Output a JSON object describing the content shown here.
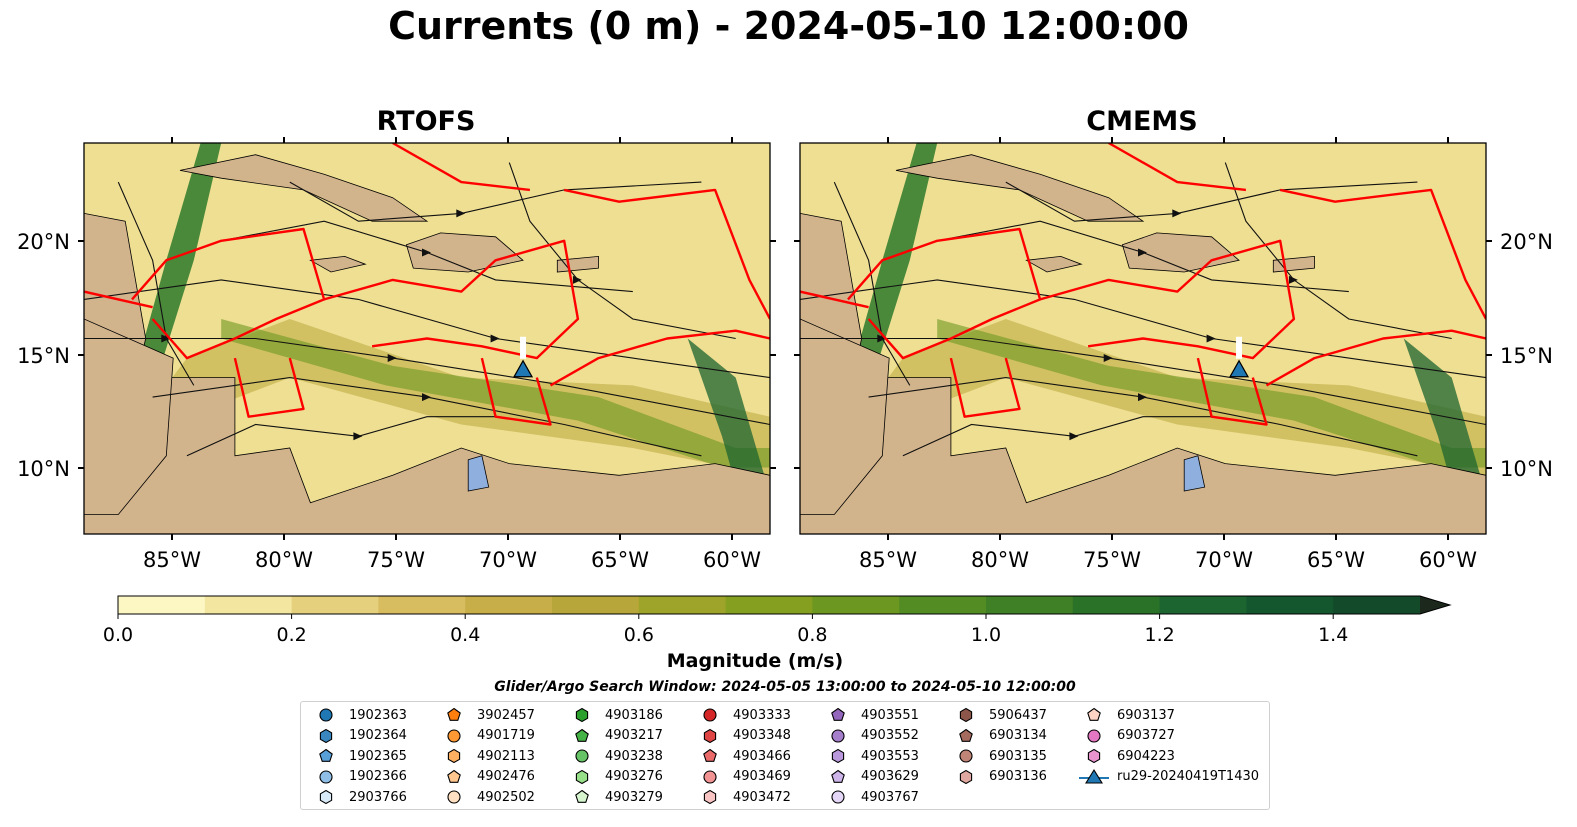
{
  "title": "Currents (0 m) - 2024-05-10 12:00:00",
  "panels": [
    {
      "title": "RTOFS"
    },
    {
      "title": "CMEMS"
    }
  ],
  "axes": {
    "lat_ticks": [
      "20°N",
      "15°N",
      "10°N"
    ],
    "lon_ticks": [
      "85°W",
      "80°W",
      "75°W",
      "70°W",
      "65°W",
      "60°W"
    ]
  },
  "colorbar": {
    "label": "Magnitude (m/s)",
    "ticks": [
      "0.0",
      "0.2",
      "0.4",
      "0.6",
      "0.8",
      "1.0",
      "1.2",
      "1.4"
    ],
    "range": [
      0.0,
      1.5
    ],
    "extend": "max",
    "colors": [
      "#fdf7c3",
      "#f3e6a0",
      "#e5d07e",
      "#d8bc60",
      "#c8ae49",
      "#b7a73a",
      "#9ea32a",
      "#85a020",
      "#6c9721",
      "#548c24",
      "#3f7f26",
      "#2b7229",
      "#1c6430",
      "#14562e",
      "#134a2a",
      "#173d26",
      "#1a3221",
      "#1c281b"
    ]
  },
  "search_window": "Glider/Argo Search Window: 2024-05-05 13:00:00 to 2024-05-10 12:00:00",
  "legend": {
    "columns": [
      [
        {
          "label": "1902363",
          "marker": "circle",
          "color": "#1f77b4"
        },
        {
          "label": "1902364",
          "marker": "hexagon",
          "color": "#3a87c0"
        },
        {
          "label": "1902365",
          "marker": "pentagon",
          "color": "#5aa0d8"
        },
        {
          "label": "1902366",
          "marker": "circle",
          "color": "#8fbfe6"
        },
        {
          "label": "2903766",
          "marker": "hexagon",
          "color": "#d8e9f7"
        }
      ],
      [
        {
          "label": "3902457",
          "marker": "pentagon",
          "color": "#ff7f0e"
        },
        {
          "label": "4901719",
          "marker": "circle",
          "color": "#ff9933"
        },
        {
          "label": "4902113",
          "marker": "hexagon",
          "color": "#ffb060"
        },
        {
          "label": "4902476",
          "marker": "pentagon",
          "color": "#ffc68f"
        },
        {
          "label": "4902502",
          "marker": "circle",
          "color": "#ffe0c2"
        }
      ],
      [
        {
          "label": "4903186",
          "marker": "hexagon",
          "color": "#2ca02c"
        },
        {
          "label": "4903217",
          "marker": "pentagon",
          "color": "#45b245"
        },
        {
          "label": "4903238",
          "marker": "circle",
          "color": "#66c466"
        },
        {
          "label": "4903276",
          "marker": "hexagon",
          "color": "#98df8a"
        },
        {
          "label": "4903279",
          "marker": "pentagon",
          "color": "#d6f5cf"
        }
      ],
      [
        {
          "label": "4903333",
          "marker": "circle",
          "color": "#d62728"
        },
        {
          "label": "4903348",
          "marker": "hexagon",
          "color": "#e04545"
        },
        {
          "label": "4903466",
          "marker": "pentagon",
          "color": "#ea6a6a"
        },
        {
          "label": "4903469",
          "marker": "circle",
          "color": "#f29494"
        },
        {
          "label": "4903472",
          "marker": "hexagon",
          "color": "#f9c4c4"
        }
      ],
      [
        {
          "label": "4903551",
          "marker": "pentagon",
          "color": "#9467bd"
        },
        {
          "label": "4903552",
          "marker": "circle",
          "color": "#a67fcc"
        },
        {
          "label": "4903553",
          "marker": "hexagon",
          "color": "#b998dc"
        },
        {
          "label": "4903629",
          "marker": "pentagon",
          "color": "#cdb5ea"
        },
        {
          "label": "4903767",
          "marker": "circle",
          "color": "#e4d6f6"
        }
      ],
      [
        {
          "label": "5906437",
          "marker": "hexagon",
          "color": "#8c564b"
        },
        {
          "label": "6903134",
          "marker": "pentagon",
          "color": "#a66b5f"
        },
        {
          "label": "6903135",
          "marker": "circle",
          "color": "#c08576"
        },
        {
          "label": "6903136",
          "marker": "hexagon",
          "color": "#e0a8a0"
        }
      ],
      [
        {
          "label": "6903137",
          "marker": "pentagon",
          "color": "#ffd4c4"
        },
        {
          "label": "6903727",
          "marker": "circle",
          "color": "#e377c2"
        },
        {
          "label": "6904223",
          "marker": "hexagon",
          "color": "#e994cf"
        },
        {
          "label": "ru29-20240419T1430",
          "marker": "triangle-line",
          "color": "#1f77b4"
        }
      ]
    ]
  }
}
